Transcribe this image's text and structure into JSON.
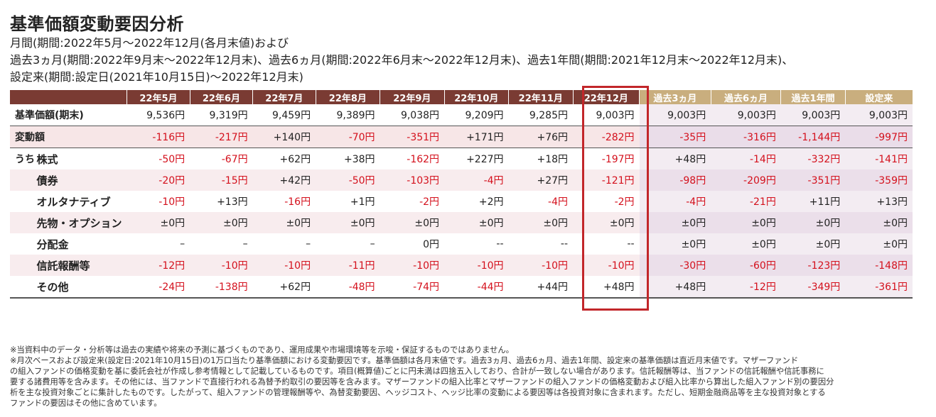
{
  "title": "基準価額変動要因分析",
  "subtitle_lines": [
    "月間(期間:2022年5月～2022年12月(各月末値)および",
    "過去3ヵ月(期間:2022年9月末～2022年12月末)、過去6ヵ月(期間:2022年6月末～2022年12月末)、過去1年間(期間:2021年12月末～2022年12月末)、",
    "設定来(期間:設定日(2021年10月15日)～2022年12月末)"
  ],
  "columns": [
    "22年5月",
    "22年6月",
    "22年7月",
    "22年8月",
    "22年9月",
    "22年10月",
    "22年11月",
    "22年12月",
    "過去3ヵ月",
    "過去6ヵ月",
    "過去1年間",
    "設定来"
  ],
  "prefix_label": "うち",
  "rows": [
    {
      "label": "基準価額(期末)",
      "values": [
        "9,536円",
        "9,319円",
        "9,459円",
        "9,389円",
        "9,038円",
        "9,209円",
        "9,285円",
        "9,003円",
        "9,003円",
        "9,003円",
        "9,003円",
        "9,003円"
      ]
    },
    {
      "label": "変動額",
      "values": [
        "-116円",
        "-217円",
        "+140円",
        "-70円",
        "-351円",
        "+171円",
        "+76円",
        "-282円",
        "-35円",
        "-316円",
        "-1,144円",
        "-997円"
      ]
    },
    {
      "label": "株式",
      "values": [
        "-50円",
        "-67円",
        "+62円",
        "+38円",
        "-162円",
        "+227円",
        "+18円",
        "-197円",
        "+48円",
        "-14円",
        "-332円",
        "-141円"
      ]
    },
    {
      "label": "債券",
      "values": [
        "-20円",
        "-15円",
        "+42円",
        "-50円",
        "-103円",
        "-4円",
        "+27円",
        "-121円",
        "-98円",
        "-209円",
        "-351円",
        "-359円"
      ]
    },
    {
      "label": "オルタナティブ",
      "values": [
        "-10円",
        "+13円",
        "-16円",
        "+1円",
        "-2円",
        "+2円",
        "-4円",
        "-2円",
        "-4円",
        "-21円",
        "+11円",
        "+13円"
      ]
    },
    {
      "label": "先物・オプション",
      "values": [
        "±0円",
        "±0円",
        "±0円",
        "±0円",
        "±0円",
        "±0円",
        "±0円",
        "±0円",
        "±0円",
        "±0円",
        "±0円",
        "±0円"
      ]
    },
    {
      "label": "分配金",
      "values": [
        "–",
        "–",
        "–",
        "–",
        "0円",
        "--",
        "--",
        "--",
        "±0円",
        "±0円",
        "±0円",
        "±0円"
      ]
    },
    {
      "label": "信託報酬等",
      "values": [
        "-12円",
        "-10円",
        "-10円",
        "-11円",
        "-10円",
        "-10円",
        "-10円",
        "-10円",
        "-30円",
        "-60円",
        "-123円",
        "-148円"
      ]
    },
    {
      "label": "その他",
      "values": [
        "-24円",
        "-138円",
        "+62円",
        "-48円",
        "-74円",
        "-44円",
        "+44円",
        "+48円",
        "+48円",
        "-12円",
        "-349円",
        "-361円"
      ]
    }
  ],
  "notes": [
    "※当資料中のデータ・分析等は過去の実績や将来の予測に基づくものであり、運用成果や市場環境等を示唆・保証するものではありません。",
    "※月次ベースおよび設定来(設定日:2021年10月15日)の1万口当たり基準価額における変動要因です。基準価額は各月末値です。過去3ヵ月、過去6ヵ月、過去1年間、設定来の基準価額は直近月末値です。マザーファンド",
    "の組入ファンドの価格変動を基に委託会社が作成し参考情報として記載しているものです。項目(概算値)ごとに円未満は四捨五入しており、合計が一致しない場合があります。信託報酬等は、当ファンドの信託報酬や信託事務に",
    "要する諸費用等を含みます。その他には、当ファンドで直接行われる為替予約取引の要因等を含みます。マザーファンドの組入比率とマザーファンドの組入ファンドの価格変動および組入比率から算出した組入ファンド別の要因分",
    "析を主な投資対象ごとに集計したものです。したがって、組入ファンドの管理報酬等や、為替変動要因、ヘッジコスト、ヘッジ比率の変動による要因等は各投資対象に含まれます。ただし、短期金融商品等を主な投資対象とする",
    "ファンドの要因はその他に含めています。"
  ],
  "colors": {
    "header_dark": "#7a3b33",
    "header_light": "#c9ae7e",
    "negative": "#d4101c",
    "highlight_border": "#c2262a",
    "pink_row": "#f7e6e7"
  }
}
